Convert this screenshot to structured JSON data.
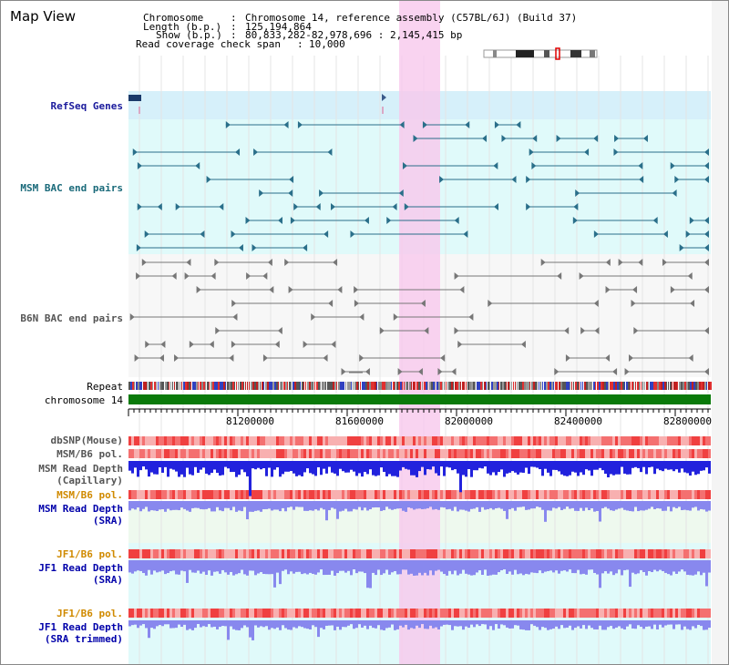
{
  "view": {
    "title": "Map View"
  },
  "header": {
    "chromosome_key": "Chromosome",
    "chromosome_val": "Chromosome 14, reference assembly (C57BL/6J) (Build 37)",
    "length_key": "Length (b.p.)",
    "length_val": "125,194,864",
    "show_key": "Show (b.p.)",
    "show_val": "80,833,282-82,978,696 : 2,145,415 bp",
    "coverage_key": "Read coverage check span",
    "coverage_val": "10,000"
  },
  "tracks": {
    "refseq": "RefSeq Genes",
    "msm_bac": "MSM BAC end pairs",
    "b6n_bac": "B6N BAC end pairs",
    "repeat": "Repeat",
    "chromosome": "chromosome 14",
    "dbsnp": "dbSNP(Mouse)",
    "msm_b6_pol": "MSM/B6 pol.",
    "msm_depth_cap_1": "MSM Read Depth",
    "msm_depth_cap_2": "(Capillary)",
    "msm_b6_pol_2": "MSM/B6 pol.",
    "msm_depth_sra_1": "MSM Read Depth",
    "msm_depth_sra_2": "(SRA)",
    "jf1_b6_pol": "JF1/B6 pol.",
    "jf1_depth_sra_1": "JF1 Read Depth",
    "jf1_depth_sra_2": "(SRA)",
    "jf1_b6_pol_2": "JF1/B6 pol.",
    "jf1_depth_trim_1": "JF1 Read Depth",
    "jf1_depth_trim_2": "(SRA trimmed)"
  },
  "axis": {
    "ticks": [
      "81200000",
      "81600000",
      "82000000",
      "82400000",
      "82800000"
    ]
  },
  "colors": {
    "refseq_bg": "#d6f0fa",
    "msm_bg": "#e0fafa",
    "gene": "#2a6f8a",
    "chromosome_bar": "#0a7a0a",
    "highlight": "#f8c8ec",
    "depth_capillary": "#2222dd",
    "depth_sra": "#8888ee",
    "pol_red": "#f04040",
    "pol_pink": "#f8b0b0"
  }
}
